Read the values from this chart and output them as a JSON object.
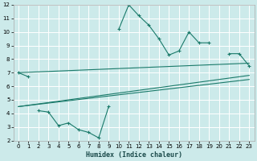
{
  "xlabel": "Humidex (Indice chaleur)",
  "bg_color": "#cceaea",
  "grid_color": "#ffffff",
  "line_color": "#1a7a6a",
  "xlim": [
    -0.5,
    23.5
  ],
  "ylim": [
    2,
    12
  ],
  "xticks": [
    0,
    1,
    2,
    3,
    4,
    5,
    6,
    7,
    8,
    9,
    10,
    11,
    12,
    13,
    14,
    15,
    16,
    17,
    18,
    19,
    20,
    21,
    22,
    23
  ],
  "yticks": [
    2,
    3,
    4,
    5,
    6,
    7,
    8,
    9,
    10,
    11,
    12
  ],
  "line1_x": [
    0,
    1,
    10,
    11,
    12,
    13,
    14,
    15,
    16,
    17,
    18,
    19,
    21,
    22,
    23
  ],
  "line1_y": [
    7.0,
    6.7,
    10.2,
    12.0,
    11.2,
    10.5,
    9.5,
    8.3,
    8.6,
    10.0,
    9.2,
    9.2,
    8.4,
    8.4,
    7.5
  ],
  "line1_gaps": [
    [
      1,
      10
    ],
    [
      19,
      21
    ]
  ],
  "line2_x": [
    2,
    3,
    4,
    5,
    6,
    7,
    8,
    9
  ],
  "line2_y": [
    4.2,
    4.1,
    3.1,
    3.3,
    2.8,
    2.6,
    2.2,
    4.5
  ],
  "line3_x": [
    0,
    23
  ],
  "line3_y": [
    7.0,
    7.7
  ],
  "line4_x": [
    0,
    23
  ],
  "line4_y": [
    4.5,
    6.8
  ],
  "line5_x": [
    0,
    23
  ],
  "line5_y": [
    4.5,
    6.5
  ]
}
